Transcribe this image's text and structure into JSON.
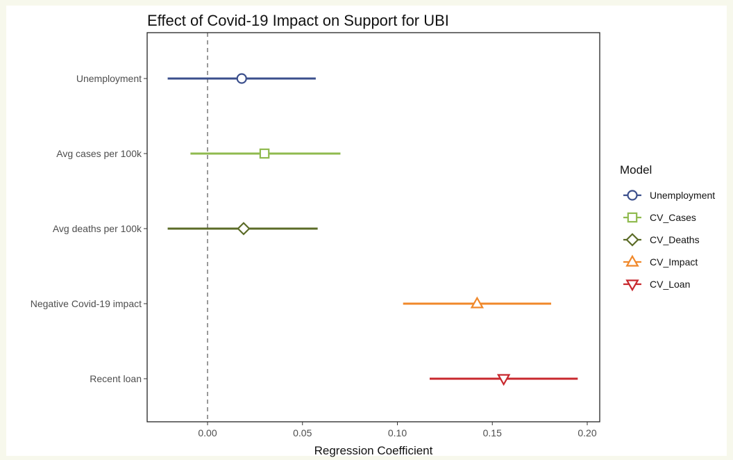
{
  "chart_data": {
    "type": "scatter",
    "title": "Effect of Covid-19 Impact on Support for UBI",
    "xlabel": "Regression Coefficient",
    "ylabel": "",
    "xlim": [
      -0.032,
      0.206
    ],
    "x_ticks": [
      0.0,
      0.05,
      0.1,
      0.15,
      0.2
    ],
    "x_tick_labels": [
      "0.00",
      "0.05",
      "0.10",
      "0.15",
      "0.20"
    ],
    "reference_line_x": 0,
    "categories": [
      "Unemployment",
      "Avg cases per 100k",
      "Avg deaths per 100k",
      "Negative Covid-19 impact",
      "Recent loan"
    ],
    "series": [
      {
        "name": "Unemployment",
        "category": "Unemployment",
        "estimate": 0.018,
        "ci_low": -0.021,
        "ci_high": 0.057,
        "color": "#3b4f8c",
        "marker": "circle"
      },
      {
        "name": "CV_Cases",
        "category": "Avg cases per 100k",
        "estimate": 0.03,
        "ci_low": -0.009,
        "ci_high": 0.07,
        "color": "#8fba4e",
        "marker": "square"
      },
      {
        "name": "CV_Deaths",
        "category": "Avg deaths per 100k",
        "estimate": 0.019,
        "ci_low": -0.021,
        "ci_high": 0.058,
        "color": "#5b6b27",
        "marker": "diamond"
      },
      {
        "name": "CV_Impact",
        "category": "Negative Covid-19 impact",
        "estimate": 0.142,
        "ci_low": 0.103,
        "ci_high": 0.181,
        "color": "#f0882a",
        "marker": "triangle-up"
      },
      {
        "name": "CV_Loan",
        "category": "Recent loan",
        "estimate": 0.156,
        "ci_low": 0.117,
        "ci_high": 0.195,
        "color": "#c8282e",
        "marker": "triangle-down"
      }
    ],
    "legend": {
      "title": "Model",
      "position": "right"
    },
    "grid": false
  }
}
